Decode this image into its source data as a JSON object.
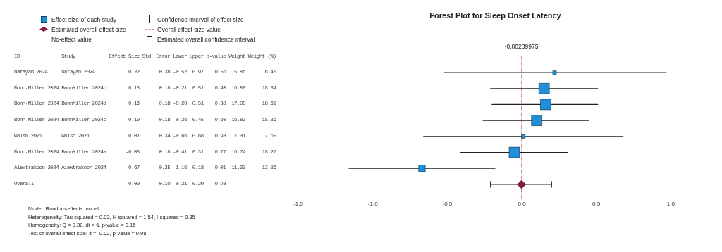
{
  "chart_data": {
    "type": "scatter",
    "orientation": "horizontal",
    "title": "Forest Plot for Sleep Onset Latency",
    "categories": [
      null,
      null,
      null,
      null,
      null,
      null,
      null,
      null
    ],
    "series": [
      {
        "name": "Effect size of each study",
        "color": "#1e8fd8",
        "marker": "square",
        "values": [
          0.22,
          0.15,
          0.16,
          0.1,
          0.01,
          -0.05,
          -0.67,
          null
        ],
        "errors": [
          [
            -0.52,
            0.97
          ],
          [
            -0.21,
            0.51
          ],
          [
            -0.2,
            0.51
          ],
          [
            -0.26,
            0.45
          ],
          [
            -0.66,
            0.68
          ],
          [
            -0.41,
            0.31
          ],
          [
            -1.16,
            -0.18
          ],
          null
        ],
        "sizes": [
          0.12,
          1,
          1,
          1,
          0.12,
          1,
          0.4,
          null
        ]
      },
      {
        "name": "Estimated overall effect size",
        "color": "#8b1a3d",
        "marker": "diamond",
        "values": [
          null,
          null,
          null,
          null,
          null,
          null,
          null,
          -0.002
        ],
        "errors": [
          null,
          null,
          null,
          null,
          null,
          null,
          null,
          [
            -0.21,
            0.2
          ]
        ]
      }
    ],
    "ref_lines": [
      {
        "axis": "x",
        "value": -0.00239975,
        "label": "-0.00239975",
        "color": "#e08a8a",
        "line_style": "dashed"
      },
      {
        "axis": "x",
        "value": 0,
        "label": "No-effect value",
        "color": "#c8c8c8",
        "line_style": "solid"
      }
    ],
    "annotations": [
      "Confidence interval of effect size",
      "Overall effect size value",
      "Estimated overall confidence interval",
      "ID               Study            Effect Size Std. Error Lower Upper p-value Weight Weight (%)",
      "Narayan 2024     Narayan 2024            0.22       0.38 -0.52  0.97    0.56   5.86       6.40",
      "Bonn-Miller 2024 BonnMiller 2024b        0.15       0.18 -0.21  0.51    0.40  16.80      18.34",
      "Bonn-Miller 2024 BonnMiller 2024d        0.16       0.18 -0.20  0.51    0.38  17.05      18.61",
      "Bonn-Miller 2024 BonnMiller 2024c        0.10       0.18 -0.26  0.45    0.60  16.82      18.36",
      "Walsh 2021       Walsh 2021              0.01       0.34 -0.66  0.68    0.98   7.01       7.65",
      "Bonn-Miller 2024 BonnMiller 2024a       -0.05       0.18 -0.41  0.31    0.77  16.74      18.27",
      "Aiewtrakoon 2024 Aiewtrakoon 2024       -0.67       0.25 -1.16 -0.18    0.01  11.33      12.36",
      "Overall                                 -0.00       0.10 -0.21  0.20    0.98",
      "Model: Random-effects model",
      "Heterogeneity: Tau-squared = 0.03, H-squared = 1.54, I-squared = 0.35",
      "Homogeneity: Q = 9.38, df = 6, p-value = 0.15",
      "Test of overall effect size: z = -0.02, p-value = 0.98"
    ],
    "xlim": [
      -1.65,
      1.29
    ],
    "xticks": [
      {
        "value": -1.5,
        "label": "-1.5"
      },
      {
        "value": -1.0,
        "label": "-1.0"
      },
      {
        "value": -0.5,
        "label": "-0.5"
      },
      {
        "value": 0,
        "label": "0.0"
      },
      {
        "value": 0.5,
        "label": "0.5"
      },
      {
        "value": 1.0,
        "label": "1.0"
      }
    ],
    "tick_labels": "x",
    "legend": "top left"
  }
}
